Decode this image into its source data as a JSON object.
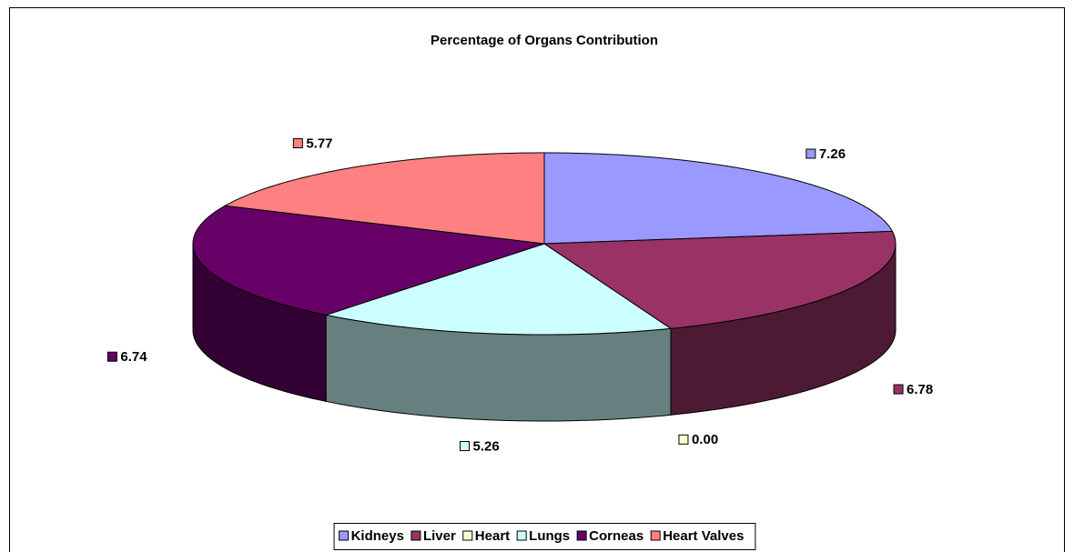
{
  "chart_data": {
    "type": "pie3d",
    "title": "Percentage of Organs Contribution",
    "categories": [
      "Kidneys",
      "Liver",
      "Heart",
      "Lungs",
      "Corneas",
      "Heart Valves"
    ],
    "values": [
      7.26,
      6.78,
      0,
      5.26,
      6.74,
      5.77
    ],
    "value_labels": [
      "7.26",
      "6.78",
      "0.00",
      "5.26",
      "6.74",
      "5.77"
    ],
    "colors": [
      "#9999ff",
      "#993366",
      "#ffffcc",
      "#ccffff",
      "#660066",
      "#ff8080"
    ],
    "legend": "bottom"
  }
}
